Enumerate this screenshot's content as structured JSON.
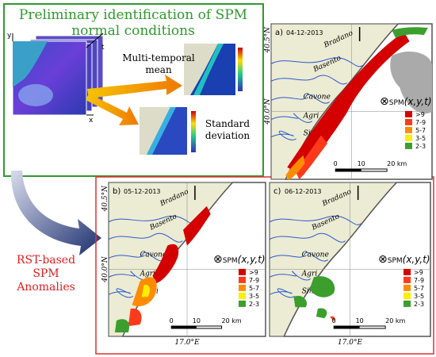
{
  "top_panel": {
    "title_lines": [
      "Preliminary identification of SPM",
      "normal conditions"
    ],
    "axes": {
      "x": "x",
      "y": "y",
      "t": "t"
    },
    "mean_label": [
      "Multi-temporal",
      "mean"
    ],
    "std_label": [
      "Standard",
      "deviation"
    ]
  },
  "side_label": [
    "RST-based",
    "SPM",
    "Anomalies"
  ],
  "maps": [
    {
      "label": "a)",
      "date": "04-12-2013"
    },
    {
      "label": "b)",
      "date": "05-12-2013"
    },
    {
      "label": "c)",
      "date": "06-12-2013"
    }
  ],
  "rivers": [
    "Bradano",
    "Basento",
    "Cavone",
    "Agri",
    "Sinni"
  ],
  "latitudes": [
    "40.5°N",
    "40.0°N"
  ],
  "longitude": "17.0°E",
  "scale": [
    "0",
    "10",
    "20 km"
  ],
  "legend": {
    "symbol": "⊗",
    "title": "SPM",
    "args": "(x,y,t)",
    "classes": [
      {
        "label": ">9",
        "color": "#d40000"
      },
      {
        "label": "7-9",
        "color": "#ff3a1a"
      },
      {
        "label": "5-7",
        "color": "#ff8c00"
      },
      {
        "label": "3-5",
        "color": "#ffee00"
      },
      {
        "label": "2-3",
        "color": "#3c9e2c"
      }
    ]
  }
}
